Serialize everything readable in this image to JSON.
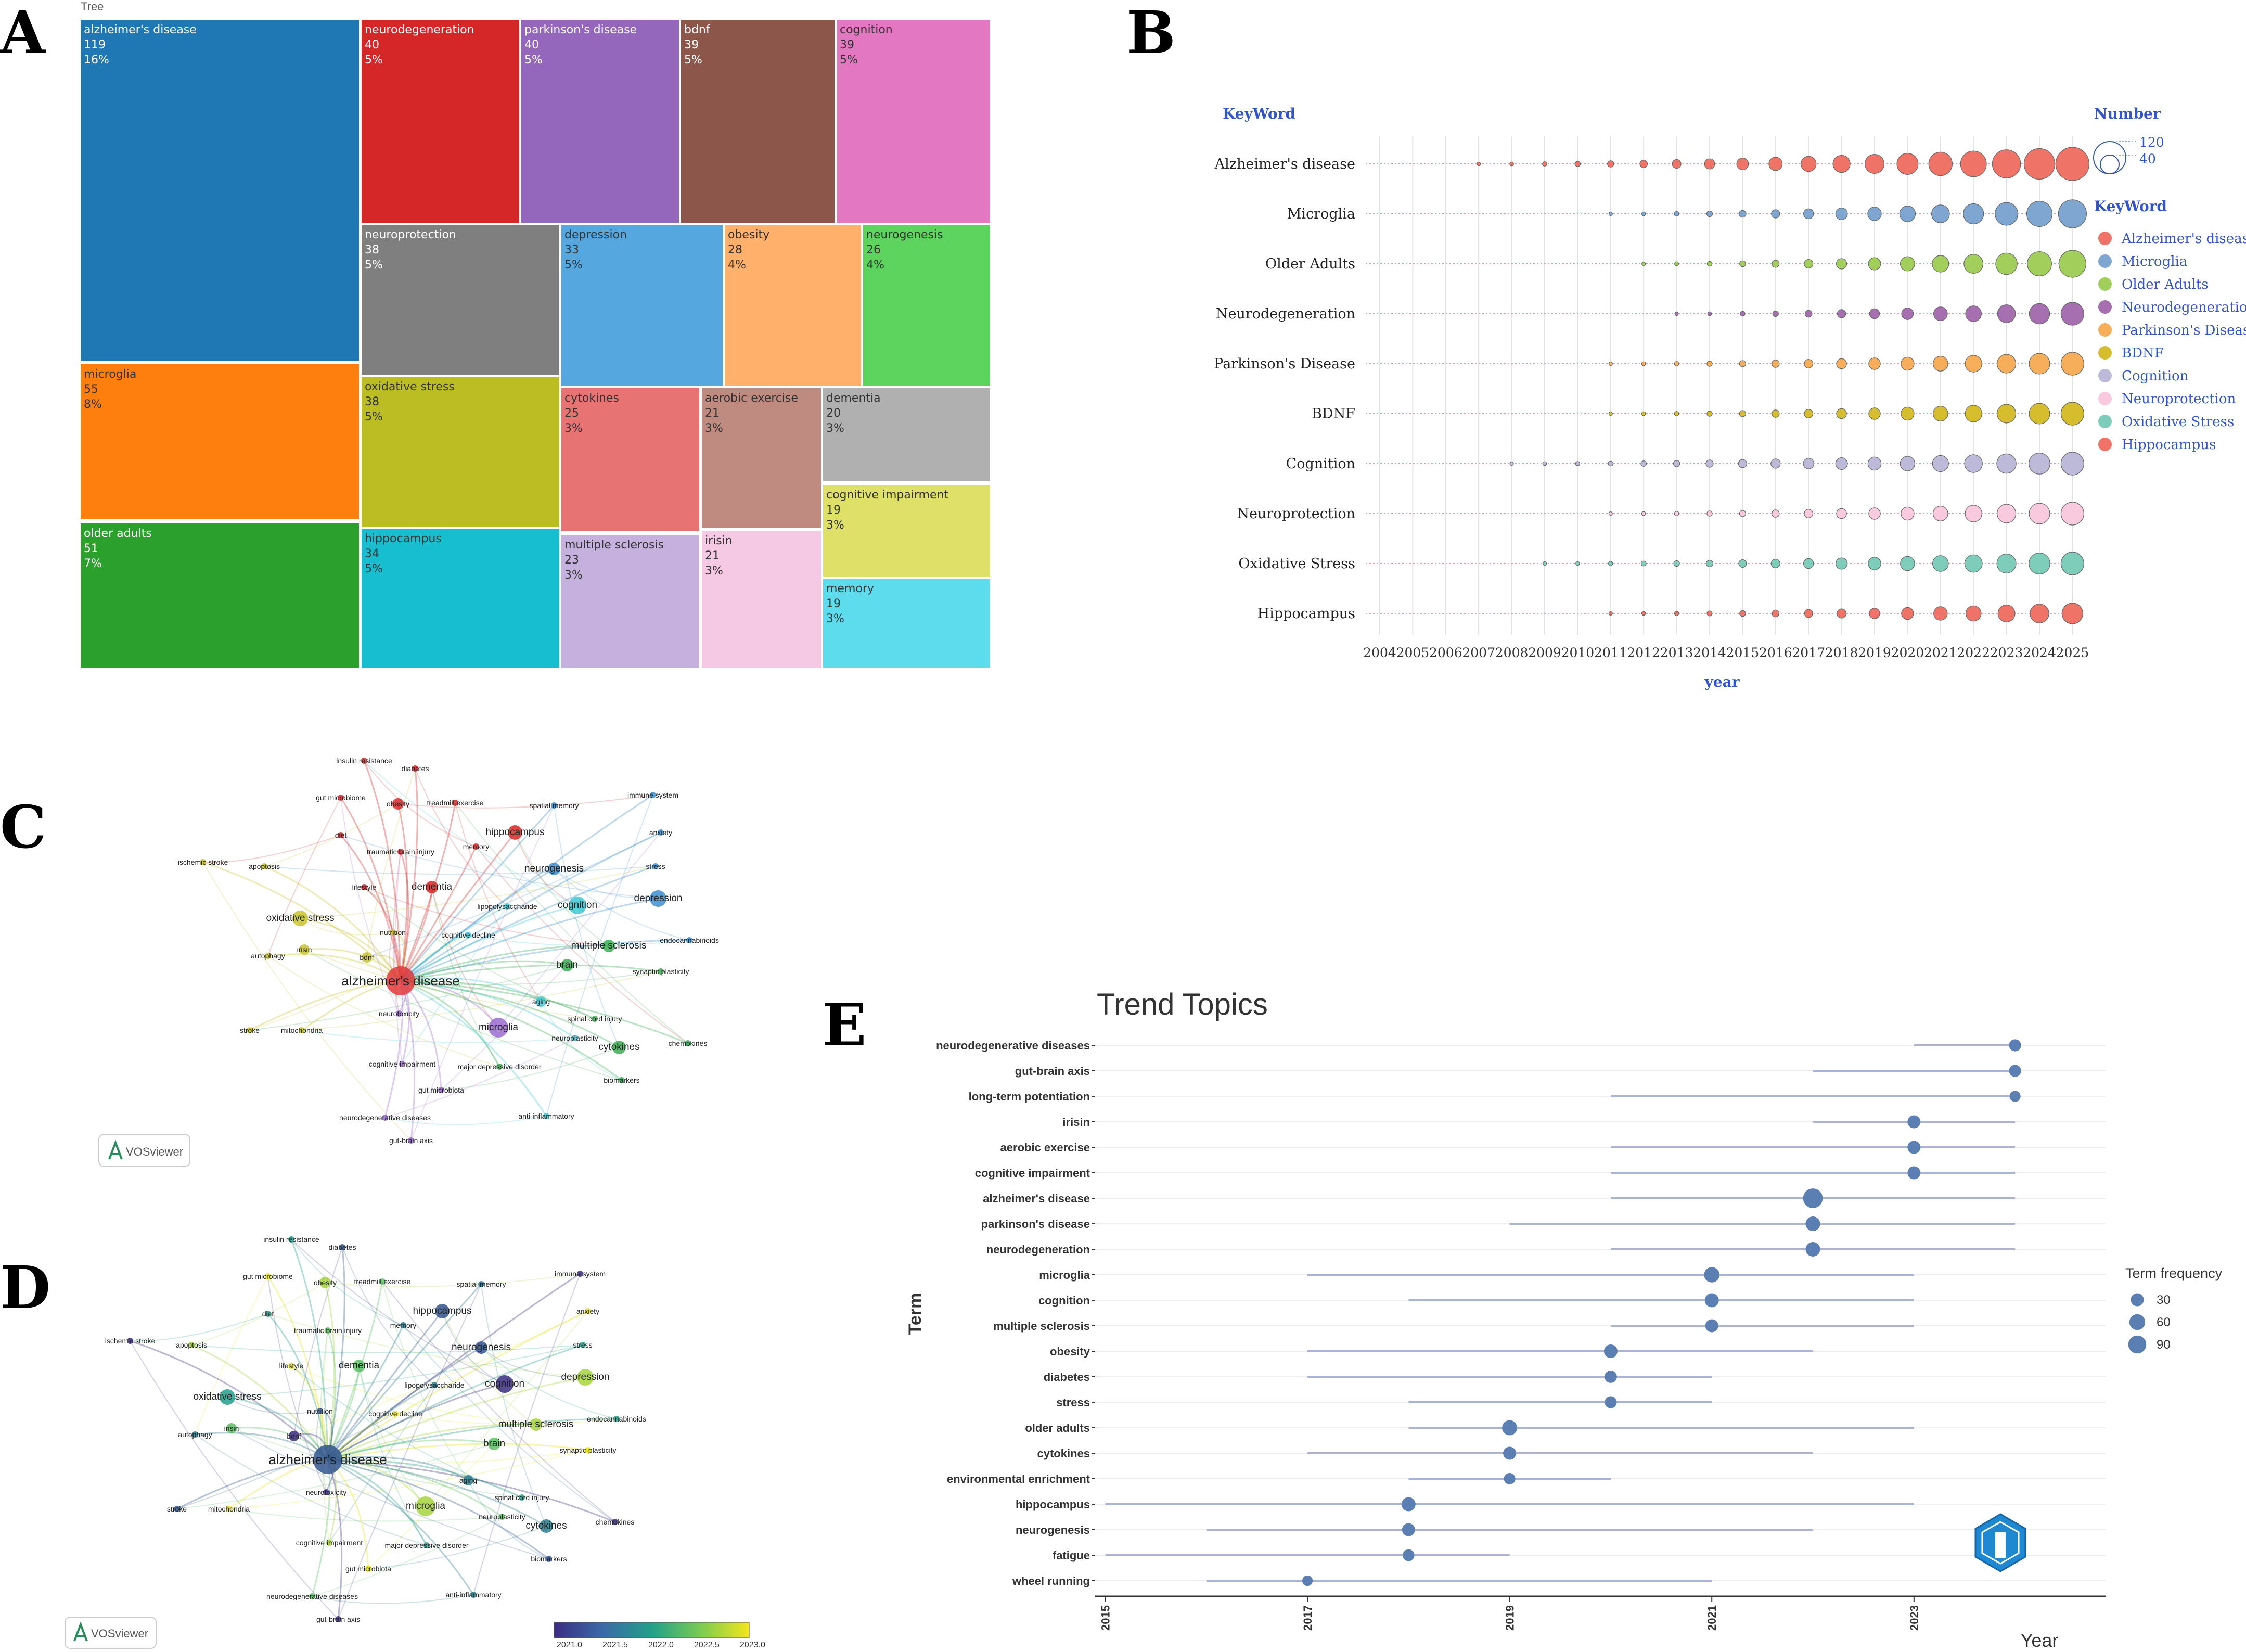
{
  "panels": {
    "A": "A",
    "B": "B",
    "C": "C",
    "D": "D",
    "E": "E"
  },
  "treemap": {
    "title": "Tree",
    "items": [
      {
        "name": "alzheimer's disease",
        "count": "119",
        "pct": "16%",
        "color": "#1f77b4",
        "text": "light"
      },
      {
        "name": "microglia",
        "count": "55",
        "pct": "8%",
        "color": "#ff7f0e",
        "text": "dark"
      },
      {
        "name": "older adults",
        "count": "51",
        "pct": "7%",
        "color": "#2ca02c",
        "text": "light"
      },
      {
        "name": "neurodegeneration",
        "count": "40",
        "pct": "5%",
        "color": "#d62728",
        "text": "light"
      },
      {
        "name": "parkinson's disease",
        "count": "40",
        "pct": "5%",
        "color": "#9467bd",
        "text": "light"
      },
      {
        "name": "bdnf",
        "count": "39",
        "pct": "5%",
        "color": "#8c564b",
        "text": "light"
      },
      {
        "name": "cognition",
        "count": "39",
        "pct": "5%",
        "color": "#e377c2",
        "text": "dark"
      },
      {
        "name": "neuroprotection",
        "count": "38",
        "pct": "5%",
        "color": "#7f7f7f",
        "text": "light"
      },
      {
        "name": "depression",
        "count": "33",
        "pct": "5%",
        "color": "#55a7e0",
        "text": "dark"
      },
      {
        "name": "obesity",
        "count": "28",
        "pct": "4%",
        "color": "#ffb06a",
        "text": "dark"
      },
      {
        "name": "neurogenesis",
        "count": "26",
        "pct": "4%",
        "color": "#5dd45d",
        "text": "dark"
      },
      {
        "name": "oxidative stress",
        "count": "38",
        "pct": "5%",
        "color": "#bcbd22",
        "text": "dark"
      },
      {
        "name": "cytokines",
        "count": "25",
        "pct": "3%",
        "color": "#e77373",
        "text": "dark"
      },
      {
        "name": "aerobic exercise",
        "count": "21",
        "pct": "3%",
        "color": "#bf8a80",
        "text": "dark"
      },
      {
        "name": "dementia",
        "count": "20",
        "pct": "3%",
        "color": "#b0b0b0",
        "text": "dark"
      },
      {
        "name": "cognitive impairment",
        "count": "19",
        "pct": "3%",
        "color": "#dfe068",
        "text": "dark"
      },
      {
        "name": "hippocampus",
        "count": "34",
        "pct": "5%",
        "color": "#17becf",
        "text": "dark"
      },
      {
        "name": "multiple sclerosis",
        "count": "23",
        "pct": "3%",
        "color": "#c5b0de",
        "text": "dark"
      },
      {
        "name": "irisin",
        "count": "21",
        "pct": "3%",
        "color": "#f5c8e3",
        "text": "dark"
      },
      {
        "name": "memory",
        "count": "19",
        "pct": "3%",
        "color": "#5cdcec",
        "text": "dark"
      }
    ]
  },
  "bubble": {
    "keyword_title": "KeyWord",
    "xlabel": "year",
    "size_title": "Number",
    "size_values": [
      "120",
      "40"
    ],
    "years": [
      "2004",
      "2005",
      "2006",
      "2007",
      "2008",
      "2009",
      "2010",
      "2011",
      "2012",
      "2013",
      "2014",
      "2015",
      "2016",
      "2017",
      "2018",
      "2019",
      "2020",
      "2021",
      "2022",
      "2023",
      "2024",
      "2025"
    ],
    "rows": [
      {
        "name": "Alzheimer's disease",
        "color": "#f07368",
        "start": "2007",
        "maxr": 32
      },
      {
        "name": "Microglia",
        "color": "#7ea6d0",
        "start": "2011",
        "maxr": 27
      },
      {
        "name": "Older Adults",
        "color": "#a2cf5b",
        "start": "2012",
        "maxr": 26
      },
      {
        "name": "Neurodegeneration",
        "color": "#a66fb0",
        "start": "2013",
        "maxr": 22
      },
      {
        "name": "Parkinson's Disease",
        "color": "#f6ae5a",
        "start": "2011",
        "maxr": 22
      },
      {
        "name": "BDNF",
        "color": "#d6bd2e",
        "start": "2011",
        "maxr": 22
      },
      {
        "name": "Cognition",
        "color": "#bdb9d9",
        "start": "2008",
        "maxr": 22
      },
      {
        "name": "Neuroprotection",
        "color": "#f9c9dd",
        "start": "2011",
        "maxr": 22
      },
      {
        "name": "Oxidative Stress",
        "color": "#7ecdbb",
        "start": "2009",
        "maxr": 22
      },
      {
        "name": "Hippocampus",
        "color": "#f07368",
        "start": "2011",
        "maxr": 20
      }
    ]
  },
  "network": {
    "labels": [
      "insulin resistance",
      "diabetes",
      "gut microbiome",
      "treadmill exercise",
      "spatial memory",
      "immune system",
      "obesity",
      "diet",
      "hippocampus",
      "anxiety",
      "traumatic brain injury",
      "memory",
      "ischemic stroke",
      "apoptosis",
      "stress",
      "neurogenesis",
      "lifestyle",
      "dementia",
      "lipopolysaccharide",
      "cognition",
      "depression",
      "oxidative stress",
      "nutrition",
      "cognitive decline",
      "irisin",
      "autophagy",
      "bdnf",
      "multiple sclerosis",
      "endocannabinoids",
      "alzheimer's disease",
      "synaptic plasticity",
      "brain",
      "aging",
      "neurotoxicity",
      "microglia",
      "spinal cord injury",
      "stroke",
      "mitochondria",
      "neuroplasticity",
      "cytokines",
      "chemokines",
      "cognitive impairment",
      "major depressive disorder",
      "biomarkers",
      "gut microbiota",
      "neurodegenerative diseases",
      "anti-inflammatory",
      "gut-brain axis"
    ],
    "brand": "VOSviewer",
    "colorbar_ticks": [
      "2021.0",
      "2021.5",
      "2022.0",
      "2022.5",
      "2023.0"
    ]
  },
  "chart_data": {
    "type": "scatter",
    "title": "Trend Topics",
    "xlabel": "Year",
    "ylabel": "Term",
    "x_ticks": [
      "2015",
      "2017",
      "2019",
      "2021",
      "2023"
    ],
    "xlim": [
      2014.9,
      2024.9
    ],
    "legend_title": "Term frequency",
    "legend_values": [
      30,
      60,
      90
    ],
    "legend_labels": [
      "30",
      "60",
      "90"
    ],
    "terms": [
      {
        "term": "neurodegenerative diseases",
        "start": 2023,
        "end": 2024,
        "median": 2024,
        "freq": 22
      },
      {
        "term": "gut-brain axis",
        "start": 2022,
        "end": 2024,
        "median": 2024,
        "freq": 22
      },
      {
        "term": "long-term potentiation",
        "start": 2020,
        "end": 2024,
        "median": 2024,
        "freq": 15
      },
      {
        "term": "irisin",
        "start": 2022,
        "end": 2024,
        "median": 2023,
        "freq": 30
      },
      {
        "term": "aerobic exercise",
        "start": 2020,
        "end": 2024,
        "median": 2023,
        "freq": 30
      },
      {
        "term": "cognitive impairment",
        "start": 2020,
        "end": 2024,
        "median": 2023,
        "freq": 30
      },
      {
        "term": "alzheimer's disease",
        "start": 2020,
        "end": 2024,
        "median": 2022,
        "freq": 119
      },
      {
        "term": "parkinson's disease",
        "start": 2019,
        "end": 2024,
        "median": 2022,
        "freq": 45
      },
      {
        "term": "neurodegeneration",
        "start": 2020,
        "end": 2024,
        "median": 2022,
        "freq": 45
      },
      {
        "term": "microglia",
        "start": 2017,
        "end": 2023,
        "median": 2021,
        "freq": 55
      },
      {
        "term": "cognition",
        "start": 2018,
        "end": 2023,
        "median": 2021,
        "freq": 40
      },
      {
        "term": "multiple sclerosis",
        "start": 2020,
        "end": 2023,
        "median": 2021,
        "freq": 30
      },
      {
        "term": "obesity",
        "start": 2017,
        "end": 2022,
        "median": 2020,
        "freq": 35
      },
      {
        "term": "diabetes",
        "start": 2017,
        "end": 2021,
        "median": 2020,
        "freq": 25
      },
      {
        "term": "stress",
        "start": 2018,
        "end": 2021,
        "median": 2020,
        "freq": 22
      },
      {
        "term": "older adults",
        "start": 2018,
        "end": 2023,
        "median": 2019,
        "freq": 51
      },
      {
        "term": "cytokines",
        "start": 2017,
        "end": 2022,
        "median": 2019,
        "freq": 30
      },
      {
        "term": "environmental enrichment",
        "start": 2018,
        "end": 2020,
        "median": 2019,
        "freq": 18
      },
      {
        "term": "hippocampus",
        "start": 2015,
        "end": 2023,
        "median": 2018,
        "freq": 40
      },
      {
        "term": "neurogenesis",
        "start": 2016,
        "end": 2022,
        "median": 2018,
        "freq": 30
      },
      {
        "term": "fatigue",
        "start": 2015,
        "end": 2019,
        "median": 2018,
        "freq": 20
      },
      {
        "term": "wheel running",
        "start": 2016,
        "end": 2021,
        "median": 2017,
        "freq": 12
      }
    ]
  }
}
